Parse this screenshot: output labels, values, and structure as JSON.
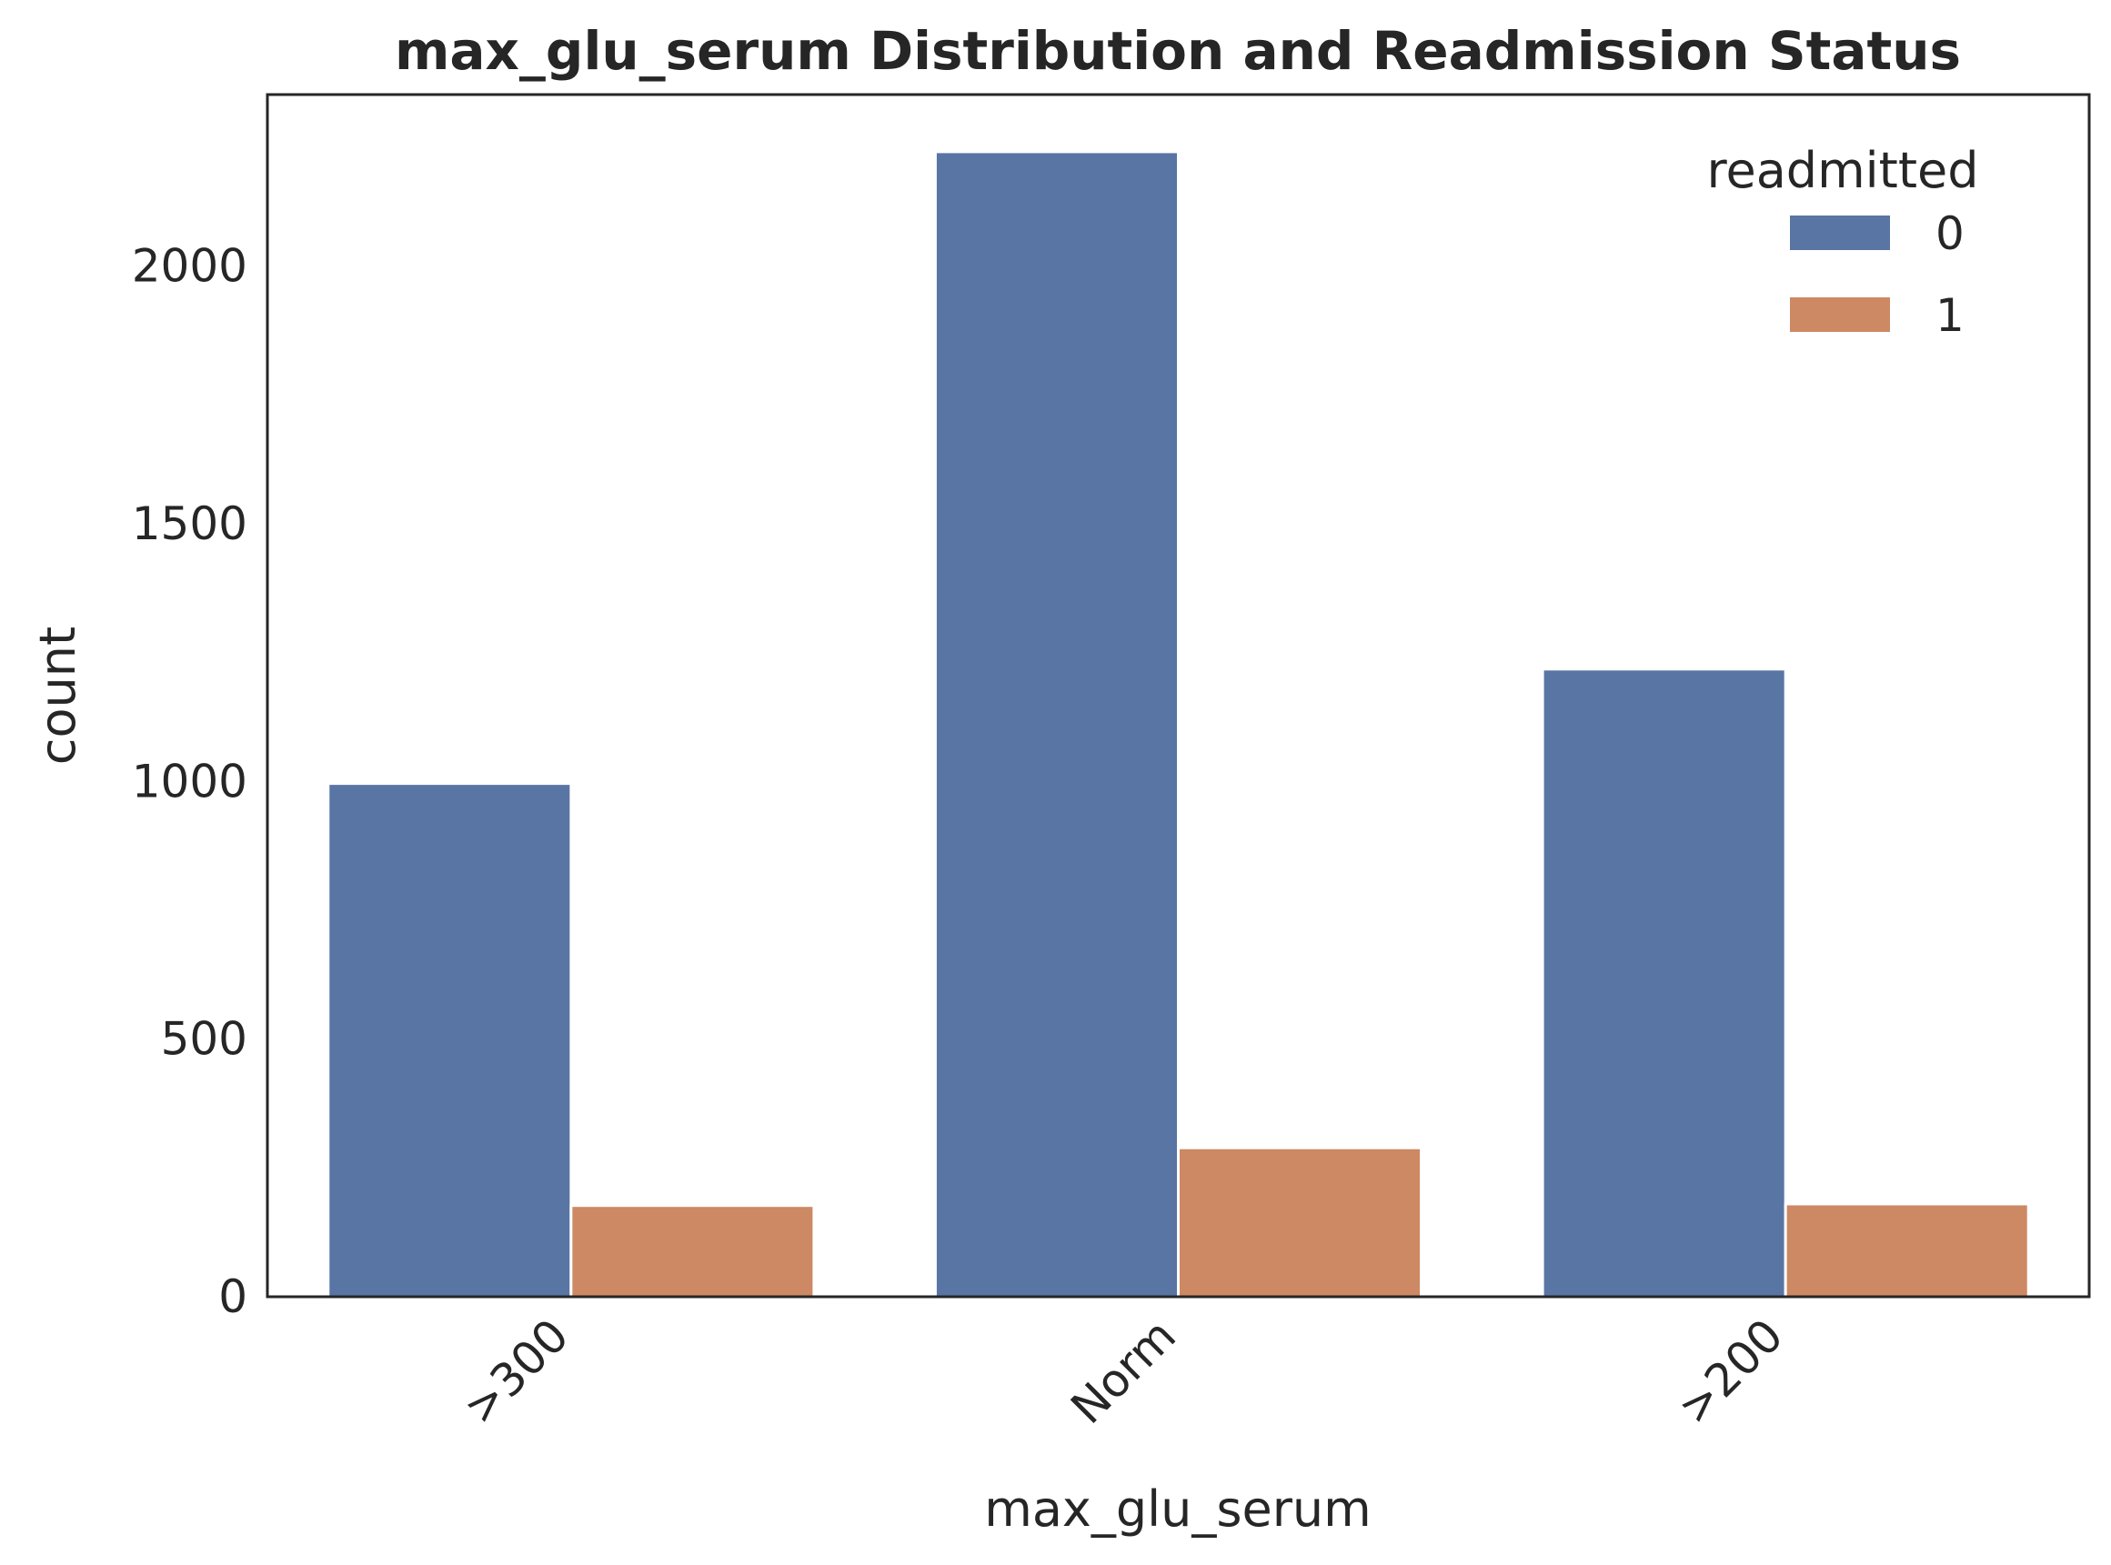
{
  "chart_data": {
    "type": "bar",
    "title": "max_glu_serum Distribution and Readmission Status",
    "xlabel": "max_glu_serum",
    "ylabel": "count",
    "categories": [
      ">300",
      "Norm",
      ">200"
    ],
    "series": [
      {
        "name": "0",
        "values": [
          996,
          2222,
          1218
        ],
        "color": "#5975a4"
      },
      {
        "name": "1",
        "values": [
          177,
          289,
          180
        ],
        "color": "#cc8963"
      }
    ],
    "ylim": [
      0,
      2333
    ],
    "yticks": [
      0,
      500,
      1000,
      1500,
      2000
    ],
    "yticklabels": [
      "0",
      "500",
      "1000",
      "1500",
      "2000"
    ],
    "legend": {
      "title": "readmitted",
      "placement": "top-right"
    },
    "grid": false
  }
}
